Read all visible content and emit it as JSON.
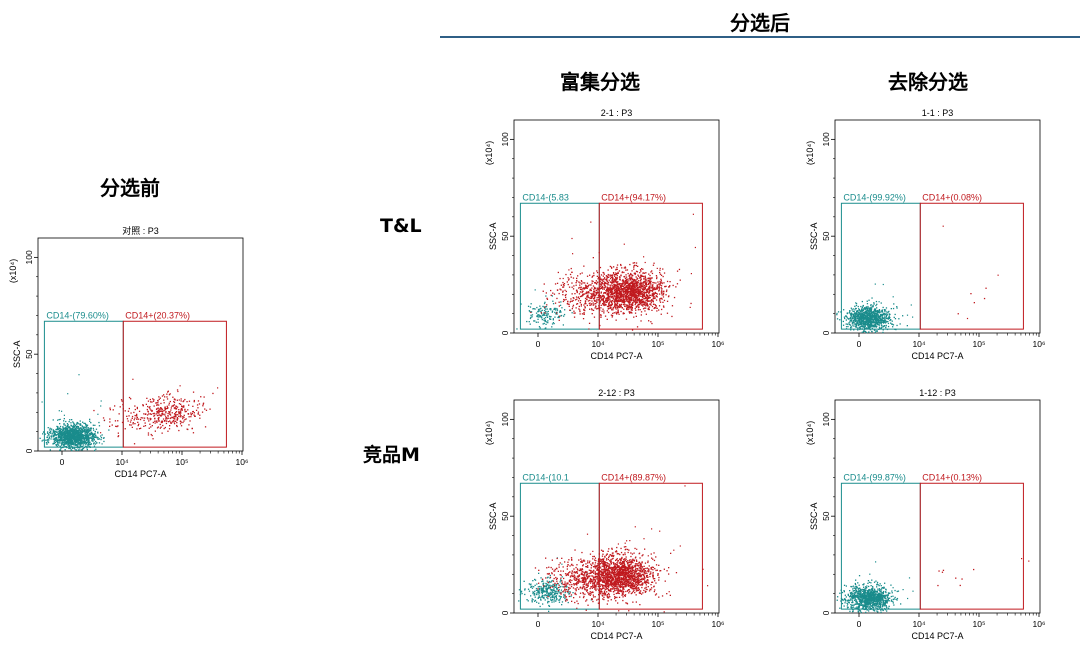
{
  "headers": {
    "before": "分选前",
    "after": "分选后",
    "enrich": "富集分选",
    "deplete": "去除分选"
  },
  "rows": {
    "tl": "T&L",
    "competitor": "竞品M"
  },
  "colors": {
    "neg": "#1a8c8c",
    "pos": "#c0191e",
    "header_line": "#2f5f86"
  },
  "chart_data": [
    {
      "id": "control",
      "type": "scatter",
      "title": "对照 : P3",
      "xlabel": "CD14 PC7-A",
      "ylabel": "SSC-A",
      "yunit": "(x10⁴)",
      "x_scale": "biexponential",
      "xticks": [
        "0",
        "10⁴",
        "10⁵",
        "10⁶"
      ],
      "yticks": [
        "0",
        "50",
        "100"
      ],
      "gates": [
        {
          "name": "CD14-",
          "label": "CD14-(79.60%)",
          "percent": 79.6
        },
        {
          "name": "CD14+",
          "label": "CD14+(20.37%)",
          "percent": 20.37
        }
      ],
      "clusters": [
        {
          "name": "CD14-",
          "x": 1800,
          "y": 8,
          "n": 1300
        },
        {
          "name": "CD14+",
          "x": 70000,
          "y": 20,
          "n": 420
        }
      ]
    },
    {
      "id": "tl-enrich",
      "type": "scatter",
      "title": "2-1 : P3",
      "xlabel": "CD14 PC7-A",
      "ylabel": "SSC-A",
      "yunit": "(x10⁴)",
      "x_scale": "biexponential",
      "xticks": [
        "0",
        "10⁴",
        "10⁵",
        "10⁶"
      ],
      "yticks": [
        "0",
        "50",
        "100"
      ],
      "gates": [
        {
          "name": "CD14-",
          "label": "CD14-(5.83",
          "percent": 5.83
        },
        {
          "name": "CD14+",
          "label": "CD14+(94.17%)",
          "percent": 94.17
        }
      ],
      "clusters": [
        {
          "name": "CD14-",
          "x": 1200,
          "y": 10,
          "n": 150
        },
        {
          "name": "CD14+",
          "x": 35000,
          "y": 22,
          "n": 1900
        }
      ]
    },
    {
      "id": "tl-deplete",
      "type": "scatter",
      "title": "1-1 : P3",
      "xlabel": "CD14 PC7-A",
      "ylabel": "SSC-A",
      "yunit": "(x10⁴)",
      "x_scale": "biexponential",
      "xticks": [
        "0",
        "10⁴",
        "10⁵",
        "10⁶"
      ],
      "yticks": [
        "0",
        "50",
        "100"
      ],
      "gates": [
        {
          "name": "CD14-",
          "label": "CD14-(99.92%)",
          "percent": 99.92
        },
        {
          "name": "CD14+",
          "label": "CD14+(0.08%)",
          "percent": 0.08
        }
      ],
      "clusters": [
        {
          "name": "CD14-",
          "x": 1500,
          "y": 8,
          "n": 1000
        },
        {
          "name": "CD14+",
          "x": 50000,
          "y": 18,
          "n": 5
        }
      ]
    },
    {
      "id": "m-enrich",
      "type": "scatter",
      "title": "2-12 : P3",
      "xlabel": "CD14 PC7-A",
      "ylabel": "SSC-A",
      "yunit": "(x10⁴)",
      "x_scale": "biexponential",
      "xticks": [
        "0",
        "10⁴",
        "10⁵",
        "10⁶"
      ],
      "yticks": [
        "0",
        "50",
        "100"
      ],
      "gates": [
        {
          "name": "CD14-",
          "label": "CD14-(10.1",
          "percent": 10.1
        },
        {
          "name": "CD14+",
          "label": "CD14+(89.87%)",
          "percent": 89.87
        }
      ],
      "clusters": [
        {
          "name": "CD14-",
          "x": 1500,
          "y": 11,
          "n": 300
        },
        {
          "name": "CD14+",
          "x": 25000,
          "y": 20,
          "n": 1900
        }
      ]
    },
    {
      "id": "m-deplete",
      "type": "scatter",
      "title": "1-12 : P3",
      "xlabel": "CD14 PC7-A",
      "ylabel": "SSC-A",
      "yunit": "(x10⁴)",
      "x_scale": "biexponential",
      "xticks": [
        "0",
        "10⁴",
        "10⁵",
        "10⁶"
      ],
      "yticks": [
        "0",
        "50",
        "100"
      ],
      "gates": [
        {
          "name": "CD14-",
          "label": "CD14-(99.87%)",
          "percent": 99.87
        },
        {
          "name": "CD14+",
          "label": "CD14+(0.13%)",
          "percent": 0.13
        }
      ],
      "clusters": [
        {
          "name": "CD14-",
          "x": 1500,
          "y": 8,
          "n": 1000
        },
        {
          "name": "CD14+",
          "x": 40000,
          "y": 18,
          "n": 8
        }
      ]
    }
  ]
}
